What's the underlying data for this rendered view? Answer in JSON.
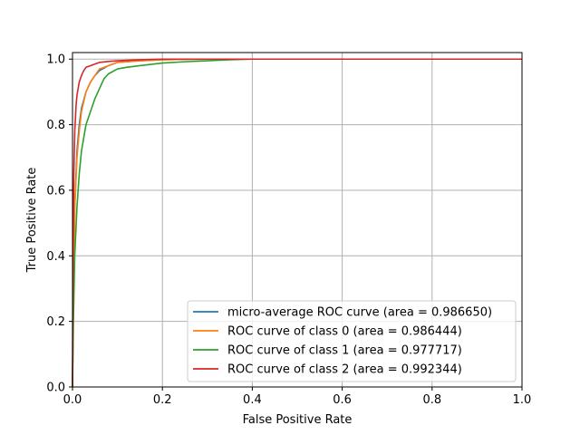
{
  "chart_data": {
    "type": "line",
    "xlabel": "False Positive Rate",
    "ylabel": "True Positive Rate",
    "xlim": [
      0.0,
      1.0
    ],
    "ylim": [
      0.0,
      1.02
    ],
    "xticks": [
      "0.0",
      "0.2",
      "0.4",
      "0.6",
      "0.8",
      "1.0"
    ],
    "yticks": [
      "0.0",
      "0.2",
      "0.4",
      "0.6",
      "0.8",
      "1.0"
    ],
    "grid": true,
    "legend_position": "lower-right",
    "series": [
      {
        "name": "micro-average ROC curve (area = 0.986650)",
        "color": "#1f77b4",
        "x": [
          0.0,
          0.002,
          0.005,
          0.01,
          0.015,
          0.02,
          0.03,
          0.04,
          0.05,
          0.06,
          0.08,
          0.1,
          0.15,
          0.2,
          0.3,
          0.4,
          0.6,
          0.8,
          1.0
        ],
        "y": [
          0.0,
          0.3,
          0.55,
          0.72,
          0.8,
          0.85,
          0.9,
          0.93,
          0.95,
          0.965,
          0.98,
          0.99,
          0.995,
          0.998,
          1.0,
          1.0,
          1.0,
          1.0,
          1.0
        ]
      },
      {
        "name": "ROC curve of class 0 (area = 0.986444)",
        "color": "#ff7f0e",
        "x": [
          0.0,
          0.002,
          0.005,
          0.01,
          0.015,
          0.02,
          0.03,
          0.04,
          0.05,
          0.06,
          0.08,
          0.1,
          0.15,
          0.2,
          0.3,
          0.4,
          0.6,
          0.8,
          1.0
        ],
        "y": [
          0.0,
          0.3,
          0.55,
          0.7,
          0.78,
          0.84,
          0.9,
          0.93,
          0.95,
          0.97,
          0.98,
          0.99,
          0.995,
          0.998,
          1.0,
          1.0,
          1.0,
          1.0,
          1.0
        ]
      },
      {
        "name": "ROC curve of class 1 (area = 0.977717)",
        "color": "#2ca02c",
        "x": [
          0.0,
          0.002,
          0.005,
          0.01,
          0.015,
          0.02,
          0.025,
          0.03,
          0.04,
          0.05,
          0.06,
          0.07,
          0.08,
          0.1,
          0.12,
          0.15,
          0.2,
          0.25,
          0.3,
          0.35,
          0.4,
          0.6,
          0.8,
          1.0
        ],
        "y": [
          0.0,
          0.2,
          0.4,
          0.55,
          0.65,
          0.72,
          0.76,
          0.8,
          0.84,
          0.88,
          0.91,
          0.94,
          0.955,
          0.97,
          0.975,
          0.98,
          0.988,
          0.992,
          0.995,
          0.998,
          1.0,
          1.0,
          1.0,
          1.0
        ]
      },
      {
        "name": "ROC curve of class 2 (area = 0.992344)",
        "color": "#d62728",
        "x": [
          0.0,
          0.001,
          0.003,
          0.005,
          0.008,
          0.01,
          0.015,
          0.02,
          0.025,
          0.03,
          0.04,
          0.05,
          0.06,
          0.08,
          0.1,
          0.15,
          0.2,
          0.3,
          0.4,
          0.6,
          0.8,
          1.0
        ],
        "y": [
          0.0,
          0.4,
          0.65,
          0.78,
          0.86,
          0.89,
          0.93,
          0.95,
          0.965,
          0.975,
          0.98,
          0.985,
          0.99,
          0.993,
          0.995,
          0.998,
          1.0,
          1.0,
          1.0,
          1.0,
          1.0,
          1.0
        ]
      }
    ]
  }
}
